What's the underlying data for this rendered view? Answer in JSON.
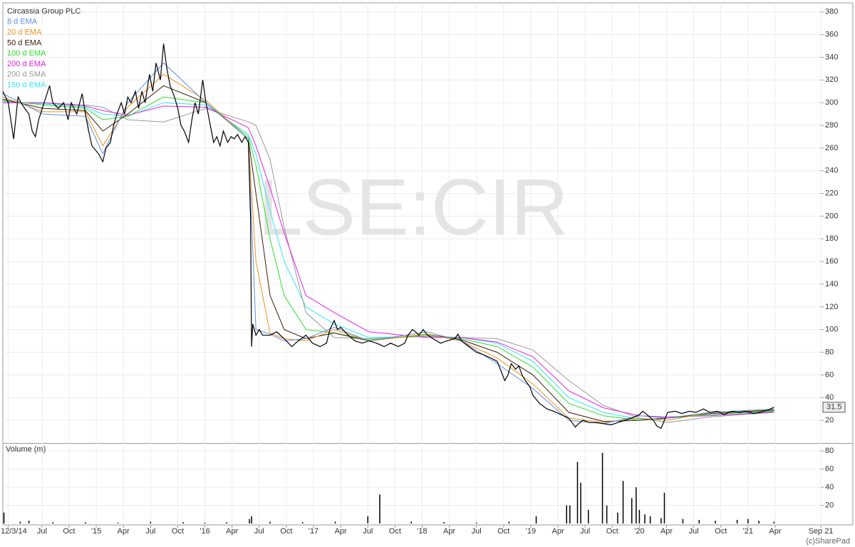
{
  "chart_data": [
    {
      "type": "line",
      "watermark": "LSE:CIR",
      "last_value": 31.5,
      "xlim": [
        2014.14,
        2021.67
      ],
      "ylim": [
        0,
        388
      ],
      "yticks": [
        20,
        40,
        60,
        80,
        100,
        120,
        140,
        160,
        180,
        200,
        220,
        240,
        260,
        280,
        300,
        320,
        340,
        360,
        380
      ],
      "grid": true,
      "series": [
        {
          "name": "Circassia Group PLC",
          "color": "#000000",
          "x": [
            2014.14,
            2014.19,
            2014.24,
            2014.28,
            2014.32,
            2014.38,
            2014.41,
            2014.44,
            2014.47,
            2014.52,
            2014.57,
            2014.6,
            2014.65,
            2014.7,
            2014.74,
            2014.77,
            2014.82,
            2014.87,
            2014.9,
            2014.93,
            2014.96,
            2015.02,
            2015.06,
            2015.09,
            2015.13,
            2015.16,
            2015.19,
            2015.23,
            2015.26,
            2015.29,
            2015.32,
            2015.36,
            2015.39,
            2015.42,
            2015.45,
            2015.49,
            2015.52,
            2015.55,
            2015.59,
            2015.62,
            2015.65,
            2015.68,
            2015.72,
            2015.75,
            2015.78,
            2015.81,
            2015.85,
            2015.88,
            2015.91,
            2015.94,
            2015.98,
            2016.01,
            2016.04,
            2016.08,
            2016.11,
            2016.14,
            2016.17,
            2016.21,
            2016.24,
            2016.27,
            2016.3,
            2016.34,
            2016.37,
            2016.4,
            2016.42,
            2016.43,
            2016.44,
            2016.47,
            2016.5,
            2016.53,
            2016.6,
            2016.66,
            2016.73,
            2016.8,
            2016.86,
            2016.93,
            2016.99,
            2017.06,
            2017.12,
            2017.15,
            2017.19,
            2017.22,
            2017.25,
            2017.32,
            2017.38,
            2017.45,
            2017.51,
            2017.58,
            2017.65,
            2017.71,
            2017.78,
            2017.84,
            2017.87,
            2017.91,
            2017.94,
            2017.97,
            2018.01,
            2018.04,
            2018.1,
            2018.17,
            2018.23,
            2018.3,
            2018.33,
            2018.36,
            2018.43,
            2018.5,
            2018.56,
            2018.63,
            2018.69,
            2018.72,
            2018.76,
            2018.79,
            2018.82,
            2018.86,
            2018.89,
            2018.92,
            2018.95,
            2018.99,
            2019.02,
            2019.08,
            2019.15,
            2019.21,
            2019.28,
            2019.35,
            2019.38,
            2019.41,
            2019.44,
            2019.48,
            2019.54,
            2019.61,
            2019.67,
            2019.74,
            2019.8,
            2019.87,
            2019.93,
            2020.0,
            2020.03,
            2020.07,
            2020.13,
            2020.16,
            2020.2,
            2020.23,
            2020.26,
            2020.33,
            2020.39,
            2020.46,
            2020.52,
            2020.59,
            2020.65,
            2020.72,
            2020.78,
            2020.85,
            2020.92,
            2020.98,
            2021.05,
            2021.11,
            2021.18,
            2021.24
          ],
          "values": [
            310,
            300,
            268,
            305,
            298,
            290,
            275,
            270,
            285,
            300,
            315,
            300,
            295,
            300,
            285,
            300,
            290,
            308,
            290,
            275,
            262,
            255,
            248,
            260,
            265,
            280,
            290,
            300,
            290,
            305,
            300,
            310,
            295,
            310,
            300,
            325,
            310,
            335,
            320,
            352,
            330,
            315,
            305,
            295,
            280,
            275,
            265,
            285,
            300,
            290,
            320,
            300,
            285,
            265,
            270,
            262,
            275,
            265,
            270,
            268,
            272,
            265,
            270,
            265,
            200,
            85,
            105,
            95,
            100,
            95,
            95,
            98,
            92,
            85,
            90,
            95,
            88,
            85,
            88,
            100,
            108,
            100,
            102,
            95,
            90,
            88,
            90,
            88,
            85,
            88,
            85,
            88,
            95,
            100,
            98,
            95,
            100,
            96,
            92,
            88,
            90,
            92,
            96,
            90,
            85,
            80,
            78,
            75,
            72,
            65,
            55,
            60,
            70,
            65,
            68,
            60,
            55,
            50,
            42,
            35,
            30,
            28,
            25,
            22,
            18,
            14,
            17,
            20,
            18,
            18,
            17,
            16,
            18,
            20,
            22,
            25,
            28,
            25,
            20,
            15,
            13,
            20,
            27,
            28,
            26,
            28,
            27,
            30,
            27,
            28,
            25,
            28,
            27,
            28,
            26,
            27,
            29,
            31.5
          ]
        },
        {
          "name": "8 d EMA",
          "color": "#5b8fe8",
          "x": [
            2014.14,
            2014.51,
            2014.9,
            2015.06,
            2015.29,
            2015.62,
            2016.01,
            2016.4,
            2016.47,
            2016.6,
            2016.73,
            2016.93,
            2017.19,
            2017.51,
            2018.04,
            2018.36,
            2018.69,
            2019.02,
            2019.35,
            2019.67,
            2020.0,
            2020.26,
            2020.65,
            2021.24
          ],
          "values": [
            308,
            290,
            288,
            255,
            300,
            335,
            300,
            268,
            100,
            96,
            90,
            92,
            102,
            90,
            98,
            90,
            70,
            48,
            20,
            17,
            24,
            22,
            27,
            30
          ]
        },
        {
          "name": "20 d EMA",
          "color": "#f0901a",
          "x": [
            2014.14,
            2014.51,
            2014.9,
            2015.06,
            2015.29,
            2015.62,
            2016.01,
            2016.4,
            2016.47,
            2016.6,
            2016.73,
            2016.93,
            2017.19,
            2017.51,
            2018.04,
            2018.36,
            2018.69,
            2019.02,
            2019.35,
            2019.67,
            2020.0,
            2020.26,
            2020.65,
            2021.24
          ],
          "values": [
            305,
            292,
            292,
            262,
            296,
            325,
            302,
            268,
            160,
            97,
            92,
            90,
            100,
            90,
            96,
            90,
            75,
            52,
            22,
            18,
            22,
            20,
            27,
            29.5
          ]
        },
        {
          "name": "50 d EMA",
          "color": "#3a1a0a",
          "x": [
            2014.14,
            2014.51,
            2014.9,
            2015.06,
            2015.29,
            2015.62,
            2016.01,
            2016.4,
            2016.47,
            2016.6,
            2016.73,
            2016.93,
            2017.19,
            2017.51,
            2018.04,
            2018.36,
            2018.69,
            2019.02,
            2019.35,
            2019.67,
            2020.0,
            2020.26,
            2020.65,
            2021.24
          ],
          "values": [
            303,
            295,
            293,
            275,
            290,
            315,
            300,
            268,
            220,
            130,
            100,
            92,
            97,
            90,
            96,
            91,
            80,
            60,
            27,
            19,
            20,
            22,
            26,
            29
          ]
        },
        {
          "name": "100 d EMA",
          "color": "#2ee02e",
          "x": [
            2014.14,
            2014.51,
            2014.9,
            2015.06,
            2015.29,
            2015.62,
            2016.01,
            2016.4,
            2016.47,
            2016.6,
            2016.73,
            2016.93,
            2017.19,
            2017.51,
            2018.04,
            2018.36,
            2018.69,
            2019.02,
            2019.35,
            2019.67,
            2020.0,
            2020.26,
            2020.65,
            2021.24
          ],
          "values": [
            302,
            298,
            295,
            285,
            288,
            305,
            300,
            270,
            245,
            180,
            130,
            100,
            97,
            91,
            95,
            92,
            85,
            67,
            35,
            24,
            20,
            22,
            25,
            28.5
          ]
        },
        {
          "name": "200 d EMA",
          "color": "#e81ee8",
          "x": [
            2014.14,
            2014.51,
            2014.9,
            2015.06,
            2015.29,
            2015.62,
            2016.01,
            2016.4,
            2016.47,
            2016.6,
            2016.73,
            2016.93,
            2017.19,
            2017.51,
            2018.04,
            2018.36,
            2018.69,
            2019.02,
            2019.35,
            2019.67,
            2020.0,
            2020.26,
            2020.65,
            2021.24
          ],
          "values": [
            300,
            300,
            297,
            293,
            289,
            297,
            296,
            278,
            262,
            225,
            185,
            130,
            115,
            98,
            93,
            93,
            89,
            76,
            46,
            31,
            24,
            23,
            24,
            27.5
          ]
        },
        {
          "name": "200 d SMA",
          "color": "#999999",
          "x": [
            2014.14,
            2014.51,
            2014.9,
            2015.06,
            2015.29,
            2015.62,
            2016.01,
            2016.4,
            2016.47,
            2016.6,
            2016.73,
            2016.93,
            2017.19,
            2017.51,
            2018.04,
            2018.36,
            2018.69,
            2019.02,
            2019.35,
            2019.67,
            2020.0,
            2020.26,
            2020.65,
            2021.24
          ],
          "values": [
            300,
            300,
            298,
            296,
            285,
            283,
            295,
            283,
            280,
            250,
            190,
            115,
            93,
            92,
            94,
            93,
            92,
            82,
            55,
            33,
            22,
            18,
            23,
            27
          ]
        },
        {
          "name": "150 d EMA",
          "color": "#33e6f0",
          "x": [
            2014.14,
            2014.51,
            2014.9,
            2015.06,
            2015.29,
            2015.62,
            2016.01,
            2016.4,
            2016.47,
            2016.6,
            2016.73,
            2016.93,
            2017.19,
            2017.51,
            2018.04,
            2018.36,
            2018.69,
            2019.02,
            2019.35,
            2019.67,
            2020.0,
            2020.26,
            2020.65,
            2021.24
          ],
          "values": [
            301,
            299,
            296,
            290,
            288,
            300,
            298,
            272,
            255,
            205,
            160,
            120,
            105,
            93,
            94,
            93,
            88,
            72,
            40,
            27,
            21,
            22,
            25,
            28
          ]
        }
      ]
    },
    {
      "type": "bar",
      "title": "Volume (m)",
      "credit": "(c)SharePad",
      "color": "#000000",
      "xlim": [
        2014.14,
        2021.67
      ],
      "ylim": [
        0,
        88
      ],
      "yticks": [
        20,
        40,
        60,
        80
      ],
      "x": [
        2014.15,
        2014.3,
        2014.38,
        2014.6,
        2014.9,
        2015.2,
        2015.5,
        2015.8,
        2016.0,
        2016.2,
        2016.41,
        2016.43,
        2016.6,
        2016.9,
        2017.2,
        2017.5,
        2017.61,
        2017.9,
        2018.2,
        2018.5,
        2018.8,
        2019.05,
        2019.33,
        2019.36,
        2019.43,
        2019.46,
        2019.53,
        2019.66,
        2019.7,
        2019.8,
        2019.85,
        2019.93,
        2019.97,
        2020.0,
        2020.05,
        2020.1,
        2020.2,
        2020.23,
        2020.4,
        2020.55,
        2020.7,
        2020.9,
        2021.0,
        2021.1,
        2021.24
      ],
      "values": [
        12,
        2,
        3,
        1.5,
        1.5,
        1,
        2,
        1.5,
        1,
        1.5,
        5,
        8,
        2,
        1.5,
        2,
        8,
        32,
        2,
        1.5,
        1,
        2,
        8,
        20,
        20,
        68,
        45,
        15,
        78,
        20,
        12,
        47,
        28,
        40,
        15,
        10,
        8,
        6,
        34,
        5,
        4,
        3,
        4,
        5,
        3,
        2
      ],
      "xticks": [
        {
          "value": 2014.19,
          "label": "12/3/14"
        },
        {
          "value": 2014.5,
          "label": "Jul"
        },
        {
          "value": 2014.75,
          "label": "Oct"
        },
        {
          "value": 2015.0,
          "label": "'15"
        },
        {
          "value": 2015.25,
          "label": "Apr"
        },
        {
          "value": 2015.5,
          "label": "Jul"
        },
        {
          "value": 2015.75,
          "label": "Oct"
        },
        {
          "value": 2016.0,
          "label": "'16"
        },
        {
          "value": 2016.25,
          "label": "Apr"
        },
        {
          "value": 2016.5,
          "label": "Jul"
        },
        {
          "value": 2016.75,
          "label": "Oct"
        },
        {
          "value": 2017.0,
          "label": "'17"
        },
        {
          "value": 2017.25,
          "label": "Apr"
        },
        {
          "value": 2017.5,
          "label": "Jul"
        },
        {
          "value": 2017.75,
          "label": "Oct"
        },
        {
          "value": 2018.0,
          "label": "'18"
        },
        {
          "value": 2018.25,
          "label": "Apr"
        },
        {
          "value": 2018.5,
          "label": "Jul"
        },
        {
          "value": 2018.75,
          "label": "Oct"
        },
        {
          "value": 2019.0,
          "label": "'19"
        },
        {
          "value": 2019.25,
          "label": "Apr"
        },
        {
          "value": 2019.5,
          "label": "Jul"
        },
        {
          "value": 2019.75,
          "label": "Oct"
        },
        {
          "value": 2020.0,
          "label": "'20"
        },
        {
          "value": 2020.25,
          "label": "Apr"
        },
        {
          "value": 2020.5,
          "label": "Jul"
        },
        {
          "value": 2020.75,
          "label": "Oct"
        },
        {
          "value": 2021.0,
          "label": "'21"
        },
        {
          "value": 2021.25,
          "label": "Apr"
        },
        {
          "value": 2021.67,
          "label": "Sep 21"
        }
      ]
    }
  ]
}
